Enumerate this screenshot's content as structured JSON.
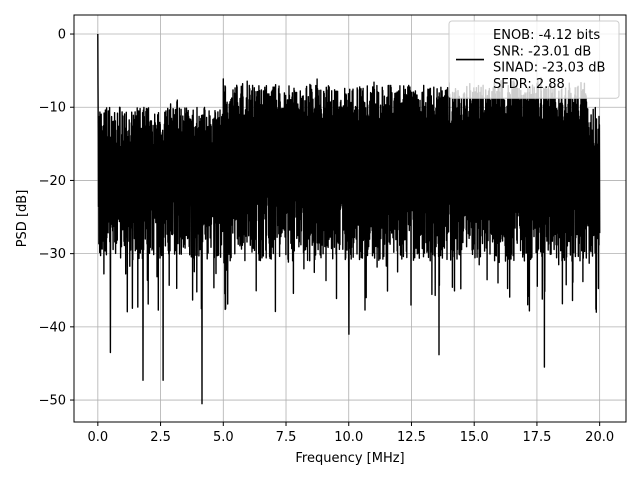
{
  "chart_data": {
    "type": "line",
    "title": "",
    "xlabel": "Frequency [MHz]",
    "ylabel": "PSD [dB]",
    "xlim": [
      -0.95,
      21.05
    ],
    "ylim": [
      -53,
      2.6
    ],
    "xticks": [
      0.0,
      2.5,
      5.0,
      7.5,
      10.0,
      12.5,
      15.0,
      17.5,
      20.0
    ],
    "xtick_labels": [
      "0.0",
      "2.5",
      "5.0",
      "7.5",
      "10.0",
      "12.5",
      "15.0",
      "17.5",
      "20.0"
    ],
    "yticks": [
      0,
      -10,
      -20,
      -30,
      -40,
      -50
    ],
    "ytick_labels": [
      "0",
      "−10",
      "−20",
      "−30",
      "−40",
      "−50"
    ],
    "grid": true,
    "legend_position": "top-right",
    "series": [
      {
        "name": "ENOB: -4.12 bits\nSNR: -23.01 dB\nSINAD: -23.03 dB\nSFDR: 2.88",
        "color": "#000000",
        "description": "noise-like PSD spanning 0 to 20 MHz, dense oscillation mostly between about -30 and -10 dB",
        "x_range": [
          0.0,
          20.0
        ],
        "peak": {
          "x": 0.0,
          "y": 0.0
        },
        "notable_minima": [
          {
            "x": 0.5,
            "y": -43.5
          },
          {
            "x": 1.8,
            "y": -47.3
          },
          {
            "x": 2.6,
            "y": -47.3
          },
          {
            "x": 4.15,
            "y": -50.5
          },
          {
            "x": 10.0,
            "y": -41.0
          },
          {
            "x": 13.6,
            "y": -43.8
          },
          {
            "x": 17.8,
            "y": -45.5
          }
        ]
      }
    ],
    "legend": [
      {
        "label_lines": [
          "ENOB: -4.12 bits",
          "SNR: -23.01 dB",
          "SINAD: -23.03 dB",
          "SFDR: 2.88"
        ]
      }
    ]
  }
}
